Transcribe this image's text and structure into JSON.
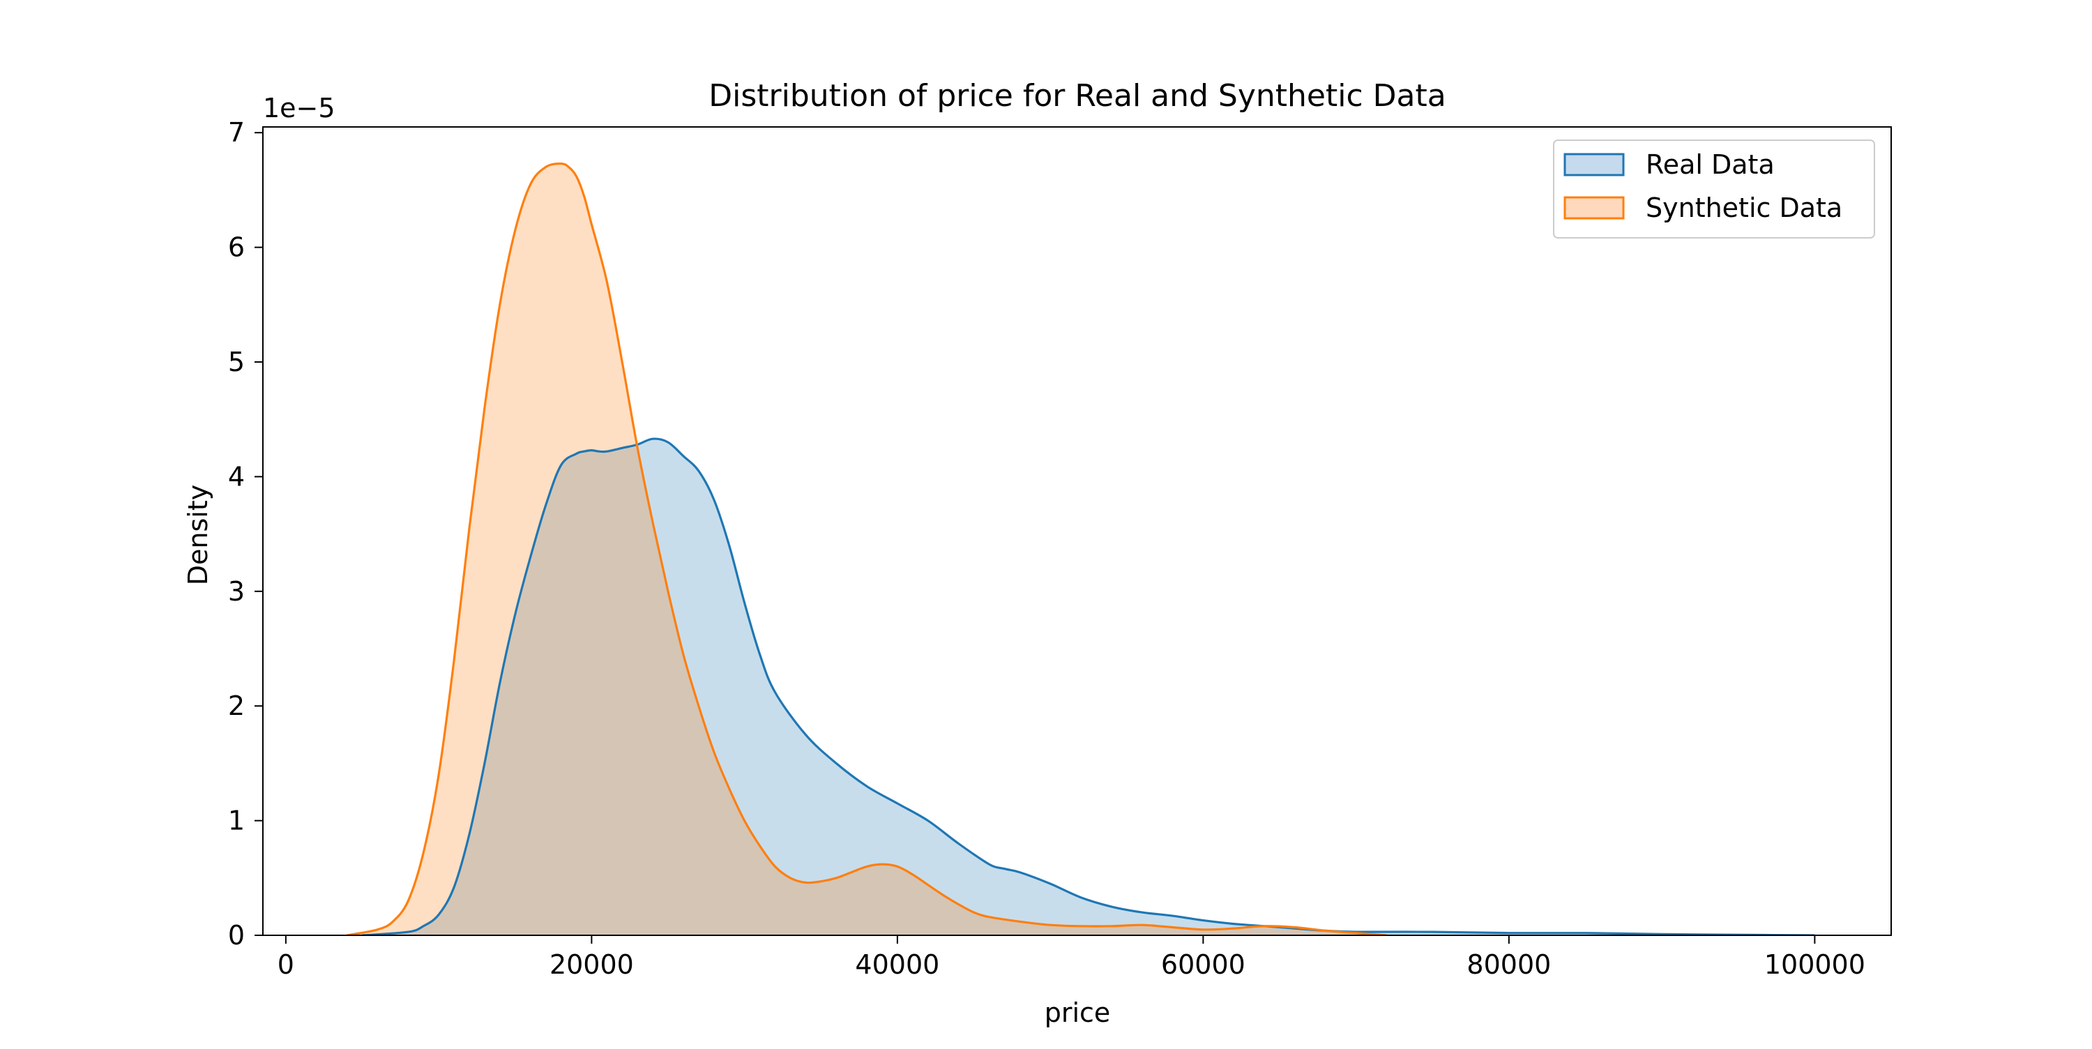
{
  "chart_data": {
    "type": "area",
    "title": "Distribution of price for Real and Synthetic Data",
    "xlabel": "price",
    "ylabel": "Density",
    "y_scale_note": "1e−5",
    "xlim": [
      -1500,
      105000
    ],
    "ylim": [
      0,
      7.05
    ],
    "xticks": [
      0,
      20000,
      40000,
      60000,
      80000,
      100000
    ],
    "xtick_labels": [
      "0",
      "20000",
      "40000",
      "60000",
      "80000",
      "100000"
    ],
    "yticks": [
      0,
      1,
      2,
      3,
      4,
      5,
      6,
      7
    ],
    "ytick_labels": [
      "0",
      "1",
      "2",
      "3",
      "4",
      "5",
      "6",
      "7"
    ],
    "grid": false,
    "legend_position": "top-right",
    "colors": {
      "real_line": "#1f77b4",
      "real_fill": "#c5daec",
      "synthetic_line": "#ff7f0e",
      "synthetic_fill": "#ffd9bd",
      "overlap_fill": "#d4c2b2"
    },
    "series": [
      {
        "name": "Real Data",
        "x": [
          5000,
          8000,
          9000,
          10000,
          11000,
          12000,
          13000,
          14000,
          15000,
          16000,
          17000,
          18000,
          19000,
          19500,
          20000,
          20500,
          21000,
          22000,
          23000,
          24000,
          25000,
          26000,
          27000,
          28000,
          29000,
          30000,
          31000,
          32000,
          34000,
          36000,
          38000,
          40000,
          42000,
          44000,
          46000,
          47000,
          48000,
          50000,
          52000,
          54000,
          56000,
          58000,
          60000,
          62000,
          64000,
          66000,
          68000,
          70000,
          75000,
          80000,
          85000,
          90000,
          95000,
          100000
        ],
        "y": [
          0.0,
          0.03,
          0.08,
          0.18,
          0.42,
          0.88,
          1.5,
          2.2,
          2.8,
          3.3,
          3.75,
          4.1,
          4.2,
          4.22,
          4.23,
          4.22,
          4.22,
          4.25,
          4.28,
          4.33,
          4.3,
          4.18,
          4.05,
          3.8,
          3.4,
          2.9,
          2.45,
          2.12,
          1.75,
          1.5,
          1.3,
          1.15,
          1.0,
          0.8,
          0.62,
          0.58,
          0.55,
          0.45,
          0.33,
          0.25,
          0.2,
          0.17,
          0.13,
          0.1,
          0.08,
          0.06,
          0.04,
          0.03,
          0.03,
          0.02,
          0.02,
          0.01,
          0.005,
          0.0
        ]
      },
      {
        "name": "Synthetic Data",
        "x": [
          4000,
          6000,
          7000,
          8000,
          9000,
          10000,
          11000,
          12000,
          13000,
          14000,
          15000,
          16000,
          17000,
          18000,
          18500,
          19000,
          19500,
          20000,
          21000,
          22000,
          23000,
          24000,
          25000,
          26000,
          27000,
          28000,
          29000,
          30000,
          31000,
          32000,
          33000,
          34000,
          35000,
          36000,
          37000,
          38000,
          39000,
          40000,
          41000,
          42000,
          43000,
          44000,
          45000,
          46000,
          48000,
          50000,
          52000,
          54000,
          56000,
          58000,
          60000,
          62000,
          64000,
          66000,
          68000,
          70000,
          72000
        ],
        "y": [
          0.0,
          0.05,
          0.12,
          0.3,
          0.72,
          1.4,
          2.4,
          3.55,
          4.6,
          5.5,
          6.15,
          6.55,
          6.7,
          6.73,
          6.7,
          6.62,
          6.45,
          6.2,
          5.7,
          5.0,
          4.25,
          3.6,
          3.0,
          2.45,
          2.0,
          1.6,
          1.28,
          1.0,
          0.78,
          0.6,
          0.5,
          0.46,
          0.47,
          0.5,
          0.55,
          0.6,
          0.62,
          0.6,
          0.53,
          0.44,
          0.35,
          0.27,
          0.2,
          0.16,
          0.12,
          0.09,
          0.08,
          0.08,
          0.09,
          0.07,
          0.05,
          0.06,
          0.08,
          0.07,
          0.04,
          0.02,
          0.0
        ]
      }
    ]
  }
}
